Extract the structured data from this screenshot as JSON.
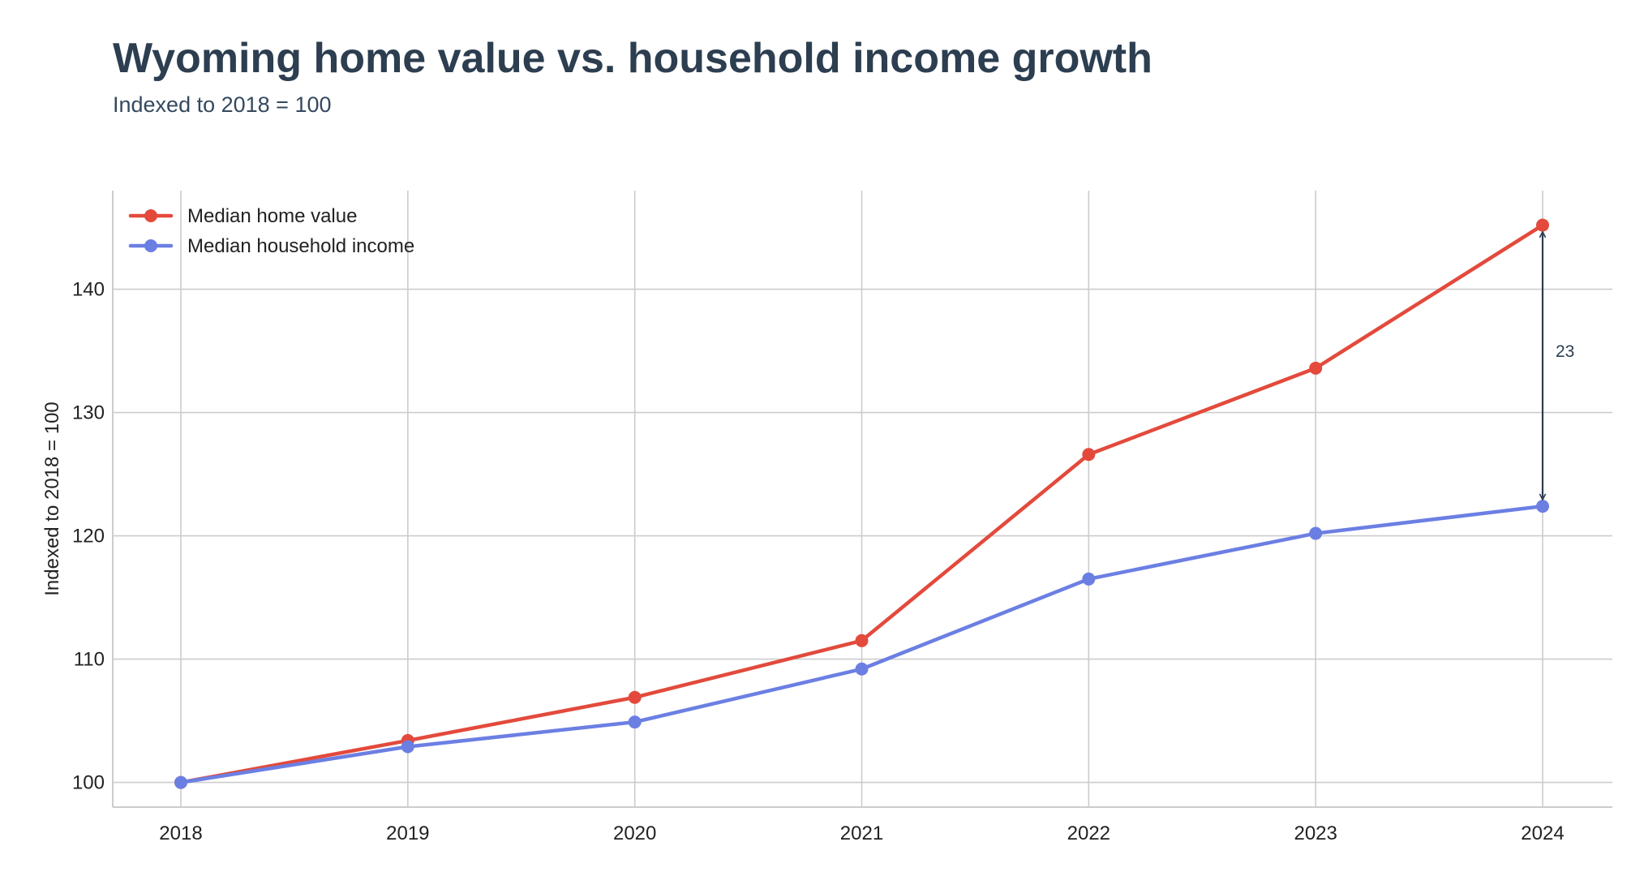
{
  "chart_data": {
    "type": "line",
    "title": "Wyoming home value vs. household income growth",
    "subtitle": "Indexed to 2018 = 100",
    "xlabel": "",
    "ylabel": "Indexed to 2018 = 100",
    "categories": [
      "2018",
      "2019",
      "2020",
      "2021",
      "2022",
      "2023",
      "2024"
    ],
    "yticks": [
      100,
      110,
      120,
      130,
      140
    ],
    "ylim": [
      98,
      148
    ],
    "grid": true,
    "legend_position": "top-left",
    "series": [
      {
        "name": "Median home value",
        "color": "#e34a3c",
        "values": [
          100,
          103.4,
          106.9,
          111.5,
          126.6,
          133.6,
          145.2
        ]
      },
      {
        "name": "Median household income",
        "color": "#6b7fe3",
        "values": [
          100,
          102.9,
          104.9,
          109.2,
          116.5,
          120.2,
          122.4
        ]
      }
    ],
    "annotations": [
      {
        "type": "gap-arrow",
        "category": "2024",
        "from": 122.4,
        "to": 145.2,
        "label": "23",
        "color": "#2c3e50"
      }
    ]
  }
}
